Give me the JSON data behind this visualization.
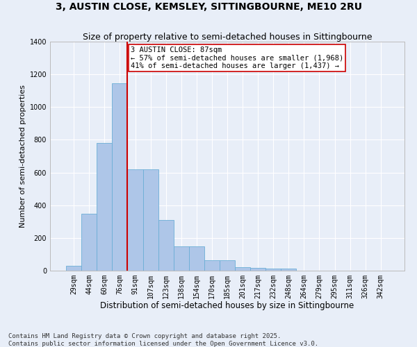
{
  "title": "3, AUSTIN CLOSE, KEMSLEY, SITTINGBOURNE, ME10 2RU",
  "subtitle": "Size of property relative to semi-detached houses in Sittingbourne",
  "xlabel": "Distribution of semi-detached houses by size in Sittingbourne",
  "ylabel": "Number of semi-detached properties",
  "categories": [
    "29sqm",
    "44sqm",
    "60sqm",
    "76sqm",
    "91sqm",
    "107sqm",
    "123sqm",
    "138sqm",
    "154sqm",
    "170sqm",
    "185sqm",
    "201sqm",
    "217sqm",
    "232sqm",
    "248sqm",
    "264sqm",
    "279sqm",
    "295sqm",
    "311sqm",
    "326sqm",
    "342sqm"
  ],
  "values": [
    28,
    350,
    780,
    1145,
    620,
    618,
    308,
    148,
    148,
    65,
    65,
    23,
    15,
    13,
    13,
    0,
    0,
    0,
    0,
    0,
    0
  ],
  "bar_color": "#aec6e8",
  "bar_edge_color": "#6baed6",
  "bg_color": "#e8eef8",
  "grid_color": "#ffffff",
  "property_label": "3 AUSTIN CLOSE: 87sqm",
  "vline_bin_index": 4,
  "smaller_pct": 57,
  "smaller_count": 1968,
  "larger_pct": 41,
  "larger_count": 1437,
  "annotation_box_color": "#ffffff",
  "annotation_box_edge": "#cc0000",
  "vline_color": "#cc0000",
  "ylim": [
    0,
    1400
  ],
  "yticks": [
    0,
    200,
    400,
    600,
    800,
    1000,
    1200,
    1400
  ],
  "footnote": "Contains HM Land Registry data © Crown copyright and database right 2025.\nContains public sector information licensed under the Open Government Licence v3.0.",
  "title_fontsize": 10,
  "subtitle_fontsize": 9,
  "xlabel_fontsize": 8.5,
  "ylabel_fontsize": 8,
  "tick_fontsize": 7,
  "annot_fontsize": 7.5,
  "footnote_fontsize": 6.5
}
